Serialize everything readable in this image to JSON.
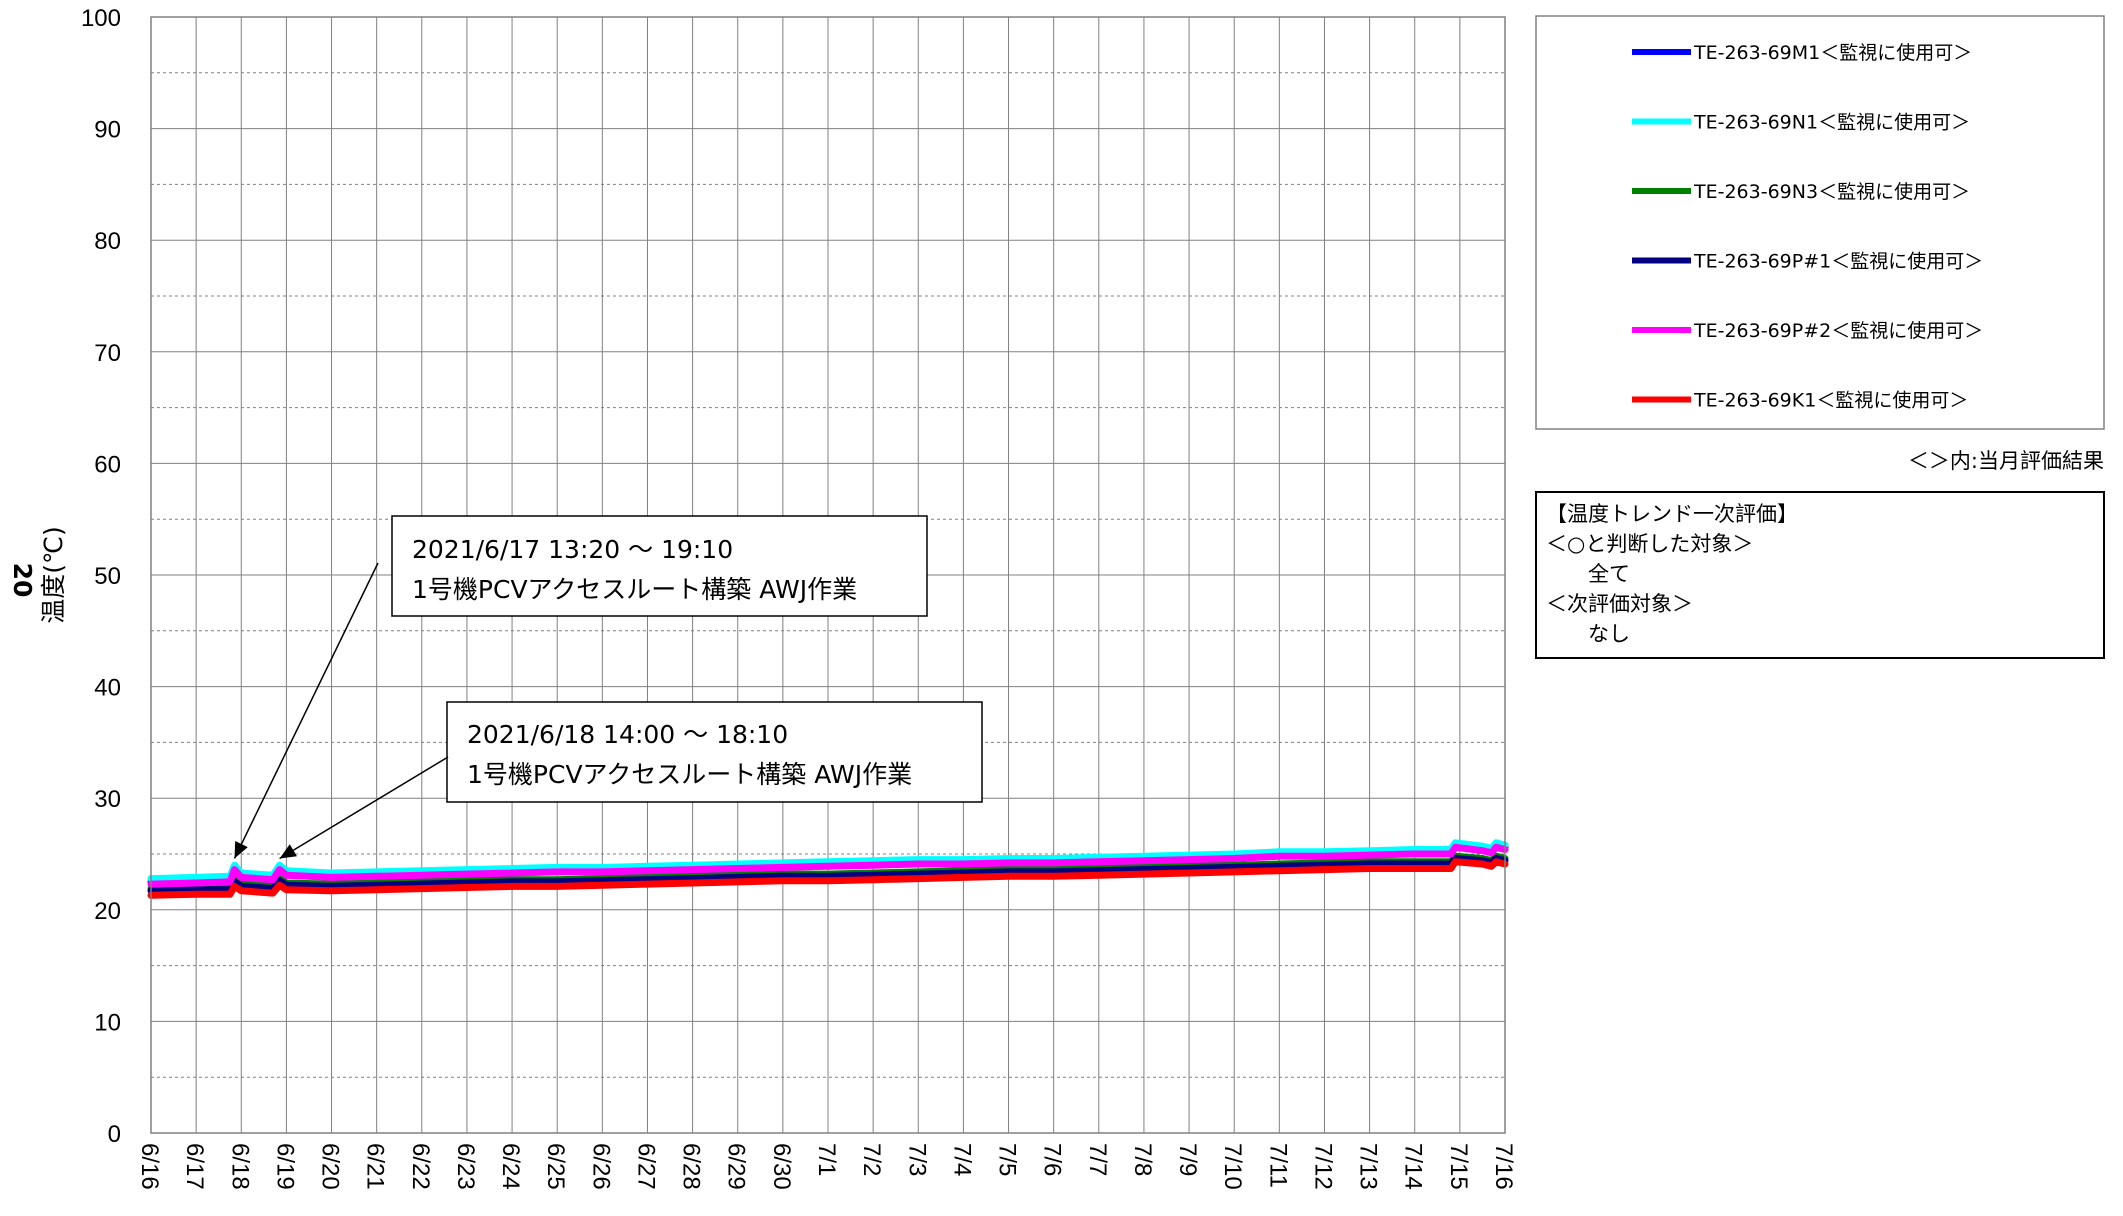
{
  "chart_data": {
    "type": "line",
    "ylabel": "温度(℃)",
    "yaxis_title_side": "20",
    "ylim": [
      0,
      100
    ],
    "y_ticks": [
      0,
      10,
      20,
      30,
      40,
      50,
      60,
      70,
      80,
      90,
      100
    ],
    "x_ticks": [
      "6/16",
      "6/17",
      "6/18",
      "6/19",
      "6/20",
      "6/21",
      "6/22",
      "6/23",
      "6/24",
      "6/25",
      "6/26",
      "6/27",
      "6/28",
      "6/29",
      "6/30",
      "7/1",
      "7/2",
      "7/3",
      "7/4",
      "7/5",
      "7/6",
      "7/7",
      "7/8",
      "7/9",
      "7/10",
      "7/11",
      "7/12",
      "7/13",
      "7/14",
      "7/15",
      "7/16"
    ],
    "grid": true,
    "legend_position": "right",
    "series": [
      {
        "name": "TE-263-69M1＜監視に使用可＞",
        "color": "#0000ff",
        "points": [
          [
            0,
            22.5
          ],
          [
            1,
            22.6
          ],
          [
            1.75,
            22.7
          ],
          [
            1.85,
            23.8
          ],
          [
            2,
            23.1
          ],
          [
            2.7,
            22.9
          ],
          [
            2.85,
            23.8
          ],
          [
            3,
            23.3
          ],
          [
            4,
            23.1
          ],
          [
            5,
            23.2
          ],
          [
            6,
            23.3
          ],
          [
            7,
            23.4
          ],
          [
            8,
            23.5
          ],
          [
            9,
            23.6
          ],
          [
            10,
            23.6
          ],
          [
            11,
            23.7
          ],
          [
            12,
            23.8
          ],
          [
            13,
            23.9
          ],
          [
            14,
            24.0
          ],
          [
            15,
            24.1
          ],
          [
            16,
            24.2
          ],
          [
            17,
            24.3
          ],
          [
            18,
            24.3
          ],
          [
            19,
            24.4
          ],
          [
            20,
            24.4
          ],
          [
            21,
            24.5
          ],
          [
            22,
            24.6
          ],
          [
            23,
            24.7
          ],
          [
            24,
            24.8
          ],
          [
            25,
            25.0
          ],
          [
            26,
            25.0
          ],
          [
            27,
            25.1
          ],
          [
            28,
            25.2
          ],
          [
            28.8,
            25.2
          ],
          [
            28.9,
            25.8
          ],
          [
            29.5,
            25.5
          ],
          [
            29.7,
            25.3
          ],
          [
            29.8,
            25.8
          ],
          [
            30,
            25.6
          ]
        ]
      },
      {
        "name": "TE-263-69N1＜監視に使用可＞",
        "color": "#00ffff",
        "points": [
          [
            0,
            22.8
          ],
          [
            1,
            22.9
          ],
          [
            1.75,
            23.0
          ],
          [
            1.85,
            24.0
          ],
          [
            2,
            23.3
          ],
          [
            2.7,
            23.1
          ],
          [
            2.85,
            24.0
          ],
          [
            3,
            23.5
          ],
          [
            4,
            23.3
          ],
          [
            5,
            23.4
          ],
          [
            6,
            23.5
          ],
          [
            7,
            23.6
          ],
          [
            8,
            23.7
          ],
          [
            9,
            23.8
          ],
          [
            10,
            23.8
          ],
          [
            11,
            23.9
          ],
          [
            12,
            24.0
          ],
          [
            13,
            24.1
          ],
          [
            14,
            24.2
          ],
          [
            15,
            24.3
          ],
          [
            16,
            24.4
          ],
          [
            17,
            24.5
          ],
          [
            18,
            24.5
          ],
          [
            19,
            24.6
          ],
          [
            20,
            24.6
          ],
          [
            21,
            24.7
          ],
          [
            22,
            24.8
          ],
          [
            23,
            24.9
          ],
          [
            24,
            25.0
          ],
          [
            25,
            25.2
          ],
          [
            26,
            25.2
          ],
          [
            27,
            25.3
          ],
          [
            28,
            25.4
          ],
          [
            28.8,
            25.4
          ],
          [
            28.9,
            26.0
          ],
          [
            29.5,
            25.7
          ],
          [
            29.7,
            25.5
          ],
          [
            29.8,
            26.0
          ],
          [
            30,
            25.8
          ]
        ]
      },
      {
        "name": "TE-263-69N3＜監視に使用可＞",
        "color": "#008000",
        "points": [
          [
            0,
            21.9
          ],
          [
            1,
            22.0
          ],
          [
            1.75,
            22.0
          ],
          [
            1.85,
            22.7
          ],
          [
            2,
            22.3
          ],
          [
            2.7,
            22.1
          ],
          [
            2.85,
            22.8
          ],
          [
            3,
            22.4
          ],
          [
            4,
            22.3
          ],
          [
            5,
            22.4
          ],
          [
            6,
            22.5
          ],
          [
            7,
            22.6
          ],
          [
            8,
            22.7
          ],
          [
            9,
            22.7
          ],
          [
            10,
            22.8
          ],
          [
            11,
            22.9
          ],
          [
            12,
            23.0
          ],
          [
            13,
            23.1
          ],
          [
            14,
            23.2
          ],
          [
            15,
            23.2
          ],
          [
            16,
            23.3
          ],
          [
            17,
            23.4
          ],
          [
            18,
            23.5
          ],
          [
            19,
            23.6
          ],
          [
            20,
            23.6
          ],
          [
            21,
            23.7
          ],
          [
            22,
            23.8
          ],
          [
            23,
            23.9
          ],
          [
            24,
            24.0
          ],
          [
            25,
            24.1
          ],
          [
            26,
            24.2
          ],
          [
            27,
            24.3
          ],
          [
            28,
            24.3
          ],
          [
            28.8,
            24.3
          ],
          [
            28.9,
            24.8
          ],
          [
            29.5,
            24.6
          ],
          [
            29.7,
            24.4
          ],
          [
            29.8,
            24.8
          ],
          [
            30,
            24.6
          ]
        ]
      },
      {
        "name": "TE-263-69P#1＜監視に使用可＞",
        "color": "#000080",
        "points": [
          [
            0,
            21.7
          ],
          [
            1,
            21.8
          ],
          [
            1.75,
            21.8
          ],
          [
            1.85,
            22.5
          ],
          [
            2,
            22.1
          ],
          [
            2.7,
            21.9
          ],
          [
            2.85,
            22.6
          ],
          [
            3,
            22.2
          ],
          [
            4,
            22.1
          ],
          [
            5,
            22.2
          ],
          [
            6,
            22.3
          ],
          [
            7,
            22.4
          ],
          [
            8,
            22.5
          ],
          [
            9,
            22.5
          ],
          [
            10,
            22.6
          ],
          [
            11,
            22.7
          ],
          [
            12,
            22.8
          ],
          [
            13,
            22.9
          ],
          [
            14,
            23.0
          ],
          [
            15,
            23.0
          ],
          [
            16,
            23.1
          ],
          [
            17,
            23.2
          ],
          [
            18,
            23.3
          ],
          [
            19,
            23.4
          ],
          [
            20,
            23.4
          ],
          [
            21,
            23.5
          ],
          [
            22,
            23.6
          ],
          [
            23,
            23.7
          ],
          [
            24,
            23.8
          ],
          [
            25,
            23.9
          ],
          [
            26,
            24.0
          ],
          [
            27,
            24.1
          ],
          [
            28,
            24.1
          ],
          [
            28.8,
            24.1
          ],
          [
            28.9,
            24.6
          ],
          [
            29.5,
            24.4
          ],
          [
            29.7,
            24.2
          ],
          [
            29.8,
            24.6
          ],
          [
            30,
            24.4
          ]
        ]
      },
      {
        "name": "TE-263-69P#2＜監視に使用可＞",
        "color": "#ff00ff",
        "points": [
          [
            0,
            22.3
          ],
          [
            1,
            22.4
          ],
          [
            1.75,
            22.5
          ],
          [
            1.85,
            23.6
          ],
          [
            2,
            22.9
          ],
          [
            2.7,
            22.7
          ],
          [
            2.85,
            23.6
          ],
          [
            3,
            23.1
          ],
          [
            4,
            22.9
          ],
          [
            5,
            23.0
          ],
          [
            6,
            23.1
          ],
          [
            7,
            23.2
          ],
          [
            8,
            23.3
          ],
          [
            9,
            23.4
          ],
          [
            10,
            23.4
          ],
          [
            11,
            23.5
          ],
          [
            12,
            23.6
          ],
          [
            13,
            23.7
          ],
          [
            14,
            23.8
          ],
          [
            15,
            23.9
          ],
          [
            16,
            24.0
          ],
          [
            17,
            24.1
          ],
          [
            18,
            24.1
          ],
          [
            19,
            24.2
          ],
          [
            20,
            24.2
          ],
          [
            21,
            24.3
          ],
          [
            22,
            24.4
          ],
          [
            23,
            24.5
          ],
          [
            24,
            24.6
          ],
          [
            25,
            24.8
          ],
          [
            26,
            24.8
          ],
          [
            27,
            24.9
          ],
          [
            28,
            25.0
          ],
          [
            28.8,
            25.0
          ],
          [
            28.9,
            25.6
          ],
          [
            29.5,
            25.3
          ],
          [
            29.7,
            25.1
          ],
          [
            29.8,
            25.6
          ],
          [
            30,
            25.4
          ]
        ]
      },
      {
        "name": "TE-263-69K1＜監視に使用可＞",
        "color": "#ff0000",
        "points": [
          [
            0,
            21.3
          ],
          [
            1,
            21.4
          ],
          [
            1.75,
            21.4
          ],
          [
            1.85,
            22.1
          ],
          [
            2,
            21.7
          ],
          [
            2.7,
            21.5
          ],
          [
            2.85,
            22.2
          ],
          [
            3,
            21.8
          ],
          [
            4,
            21.7
          ],
          [
            5,
            21.8
          ],
          [
            6,
            21.9
          ],
          [
            7,
            22.0
          ],
          [
            8,
            22.1
          ],
          [
            9,
            22.1
          ],
          [
            10,
            22.2
          ],
          [
            11,
            22.3
          ],
          [
            12,
            22.4
          ],
          [
            13,
            22.5
          ],
          [
            14,
            22.6
          ],
          [
            15,
            22.6
          ],
          [
            16,
            22.7
          ],
          [
            17,
            22.8
          ],
          [
            18,
            22.9
          ],
          [
            19,
            23.0
          ],
          [
            20,
            23.0
          ],
          [
            21,
            23.1
          ],
          [
            22,
            23.2
          ],
          [
            23,
            23.3
          ],
          [
            24,
            23.4
          ],
          [
            25,
            23.5
          ],
          [
            26,
            23.6
          ],
          [
            27,
            23.7
          ],
          [
            28,
            23.7
          ],
          [
            28.8,
            23.7
          ],
          [
            28.9,
            24.3
          ],
          [
            29.5,
            24.1
          ],
          [
            29.7,
            23.9
          ],
          [
            29.8,
            24.3
          ],
          [
            30,
            24.1
          ]
        ]
      }
    ],
    "annotations": [
      {
        "lines": [
          "2021/6/17 13:20 ～ 19:10",
          "1号機PCVアクセスルート構築 AWJ作業"
        ],
        "arrow_target": [
          1.85,
          24.6
        ]
      },
      {
        "lines": [
          "2021/6/18 14:00 ～ 18:10",
          "1号機PCVアクセスルート構築 AWJ作業"
        ],
        "arrow_target": [
          2.85,
          24.6
        ]
      }
    ]
  },
  "legend_note": "＜＞内:当月評価結果",
  "evaluation_box": {
    "lines": [
      "【温度トレンド一次評価】",
      "＜○と判断した対象＞",
      "　　全て",
      "＜次評価対象＞",
      "　　なし"
    ]
  }
}
